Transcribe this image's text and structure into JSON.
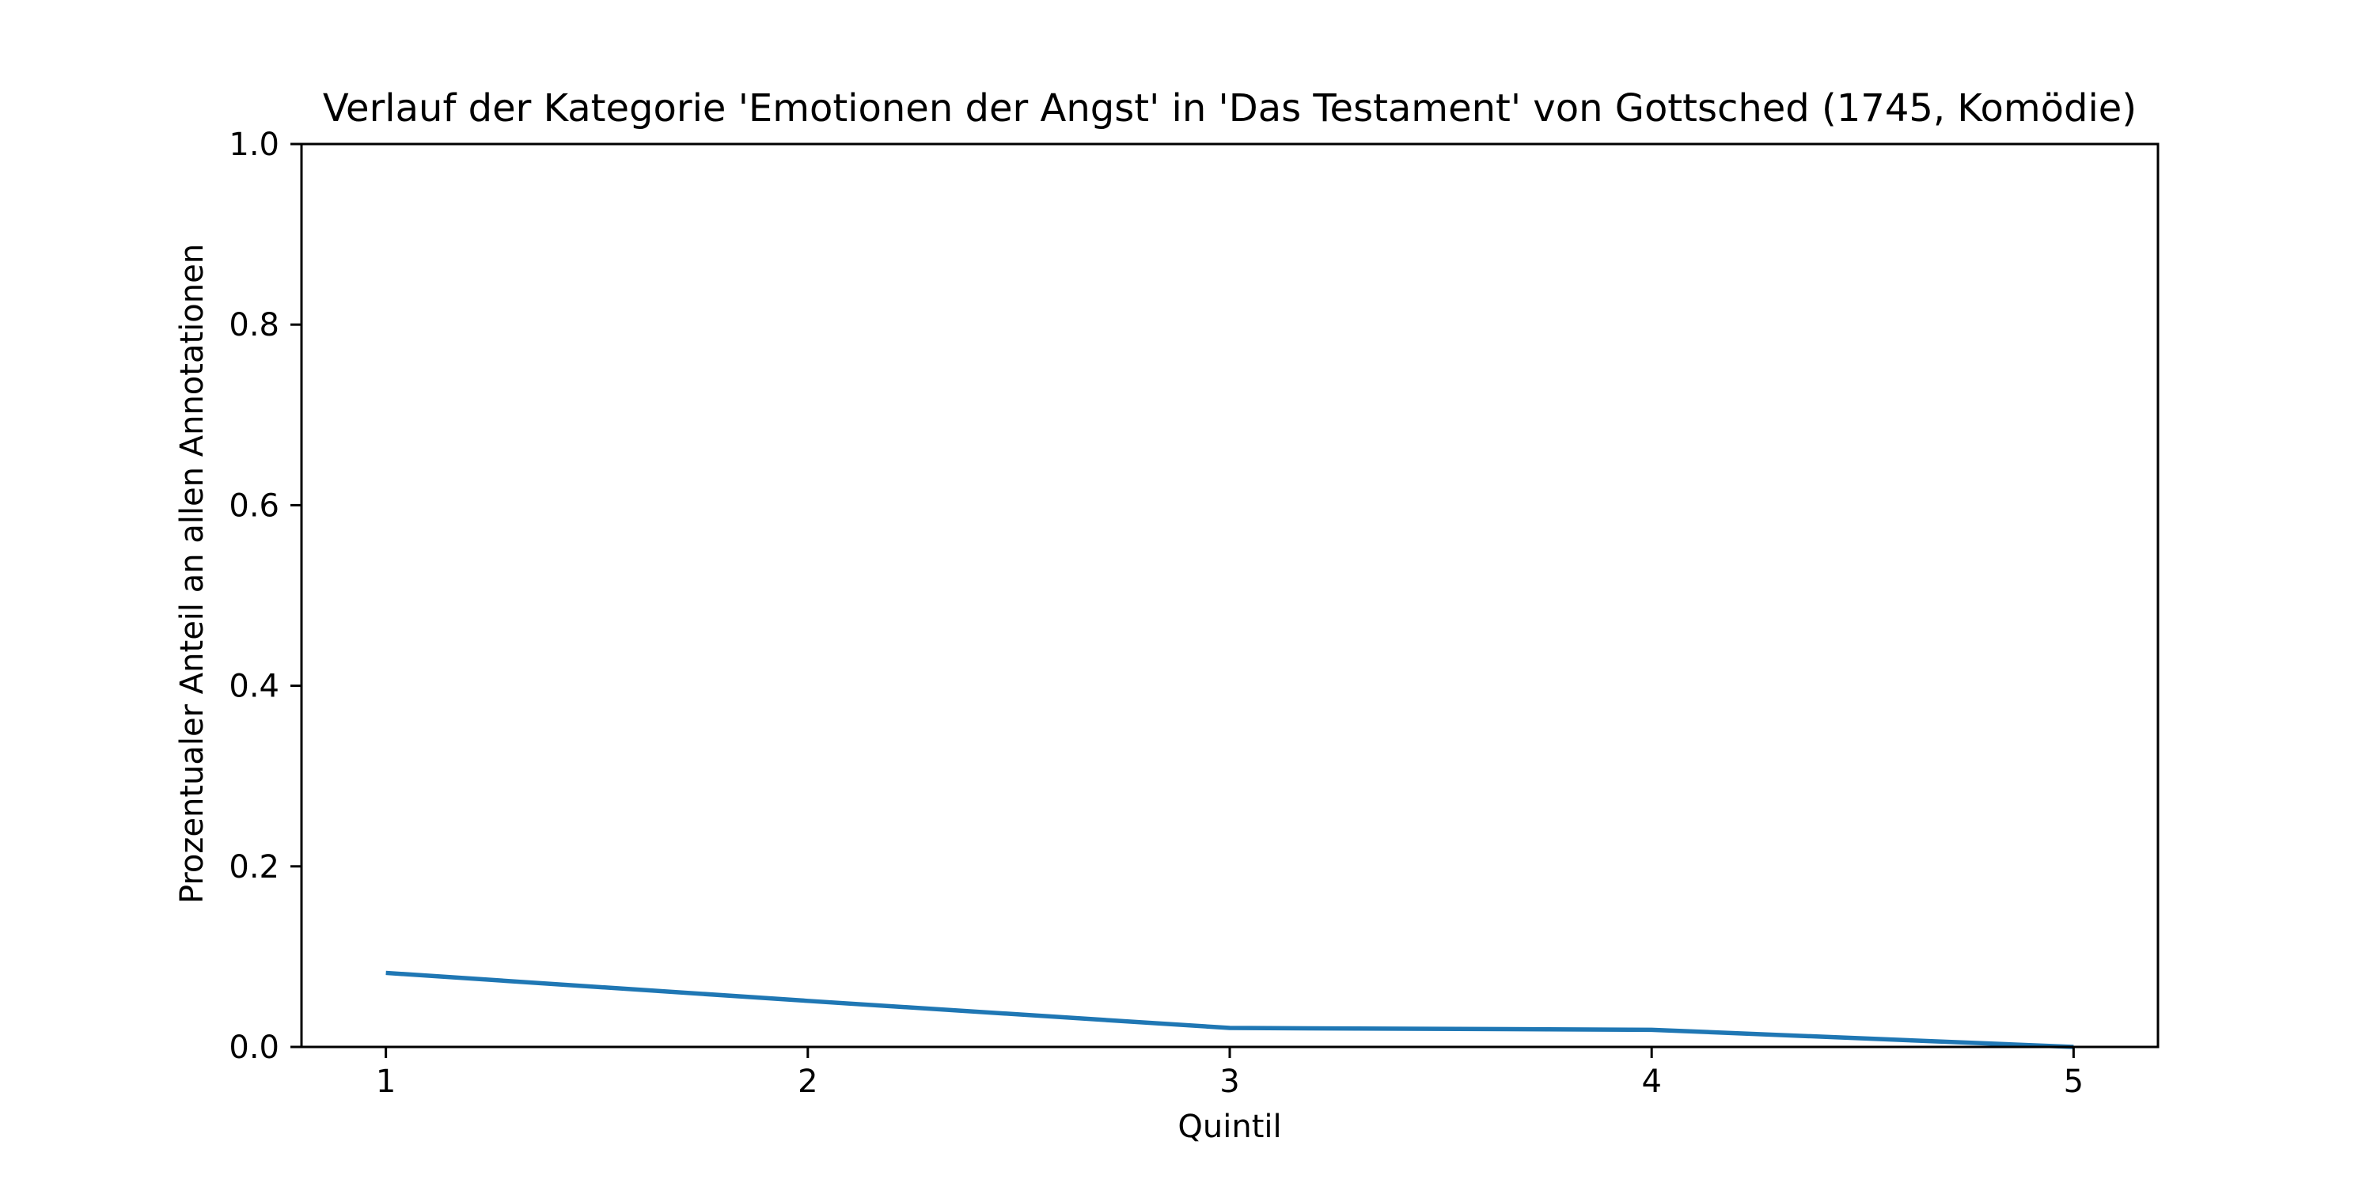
{
  "chart_data": {
    "type": "line",
    "title": "Verlauf der Kategorie 'Emotionen der Angst' in 'Das Testament' von Gottsched (1745, Komödie)",
    "xlabel": "Quintil",
    "ylabel": "Prozentualer Anteil an allen Annotationen",
    "x": [
      1,
      2,
      3,
      4,
      5
    ],
    "series": [
      {
        "values": [
          0.082,
          0.051,
          0.021,
          0.019,
          0.0
        ]
      }
    ],
    "xlim": [
      0.8,
      5.2
    ],
    "ylim": [
      0.0,
      1.0
    ],
    "xticks": [
      "1",
      "2",
      "3",
      "4",
      "5"
    ],
    "yticks": [
      "0.0",
      "0.2",
      "0.4",
      "0.6",
      "0.8",
      "1.0"
    ],
    "grid": false,
    "legend": "none",
    "colors": {
      "line": "#1f77b4",
      "axes": "#000000"
    }
  }
}
